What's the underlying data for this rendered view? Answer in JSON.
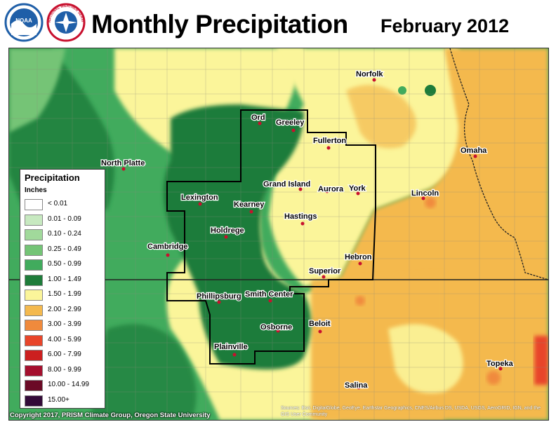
{
  "title": "Monthly Precipitation",
  "date": "February 2012",
  "logos": [
    {
      "name": "noaa-logo",
      "text": "NOAA",
      "color": "#1f5fa8"
    },
    {
      "name": "nws-logo",
      "text": "NATIONAL WEATHER SERVICE",
      "color": "#c8102e"
    }
  ],
  "legend": {
    "title": "Precipitation",
    "units": "Inches",
    "items": [
      {
        "label": "< 0.01",
        "color": "#ffffff"
      },
      {
        "label": "0.01 - 0.09",
        "color": "#c7e9c0"
      },
      {
        "label": "0.10 - 0.24",
        "color": "#a1d99b"
      },
      {
        "label": "0.25 - 0.49",
        "color": "#74c476"
      },
      {
        "label": "0.50 - 0.99",
        "color": "#41ab5d"
      },
      {
        "label": "1.00 - 1.49",
        "color": "#1e7c3a"
      },
      {
        "label": "1.50 - 1.99",
        "color": "#fbf59a"
      },
      {
        "label": "2.00 - 2.99",
        "color": "#f4b94e"
      },
      {
        "label": "3.00 - 3.99",
        "color": "#f08a3c"
      },
      {
        "label": "4.00 - 5.99",
        "color": "#e8452a"
      },
      {
        "label": "6.00 - 7.99",
        "color": "#cc1f1f"
      },
      {
        "label": "8.00 - 9.99",
        "color": "#a50f2e"
      },
      {
        "label": "10.00 - 14.99",
        "color": "#6b0a26"
      },
      {
        "label": "15.00+",
        "color": "#330a38"
      }
    ]
  },
  "cities": [
    {
      "key": "ord",
      "name": "Ord"
    },
    {
      "key": "greeley",
      "name": "Greeley"
    },
    {
      "key": "norfolk",
      "name": "Norfolk"
    },
    {
      "key": "fullerton",
      "name": "Fullerton"
    },
    {
      "key": "north_platte",
      "name": "North Platte"
    },
    {
      "key": "omaha",
      "name": "Omaha"
    },
    {
      "key": "grand_island",
      "name": "Grand Island"
    },
    {
      "key": "aurora",
      "name": "Aurora"
    },
    {
      "key": "york",
      "name": "York"
    },
    {
      "key": "lincoln",
      "name": "Lincoln"
    },
    {
      "key": "lexington",
      "name": "Lexington"
    },
    {
      "key": "kearney",
      "name": "Kearney"
    },
    {
      "key": "hastings",
      "name": "Hastings"
    },
    {
      "key": "holdrege",
      "name": "Holdrege"
    },
    {
      "key": "cambridge",
      "name": "Cambridge"
    },
    {
      "key": "hebron",
      "name": "Hebron"
    },
    {
      "key": "superior",
      "name": "Superior"
    },
    {
      "key": "phillipsburg",
      "name": "Phillipsburg"
    },
    {
      "key": "smith_center",
      "name": "Smith Center"
    },
    {
      "key": "osborne",
      "name": "Osborne"
    },
    {
      "key": "beloit",
      "name": "Beloit"
    },
    {
      "key": "plainville",
      "name": "Plainville"
    },
    {
      "key": "topeka",
      "name": "Topeka"
    },
    {
      "key": "salina",
      "name": "Salina"
    }
  ],
  "copyright": "Copyright 2017, PRISM Climate Group, Oregon State University",
  "sources": "Sources: Esri, DigitalGlobe, GeoEye, Earthstar Geographics, CNES/Airbus DS, USDA, USGS, AeroGRID, IGN, and the GIS User Community"
}
